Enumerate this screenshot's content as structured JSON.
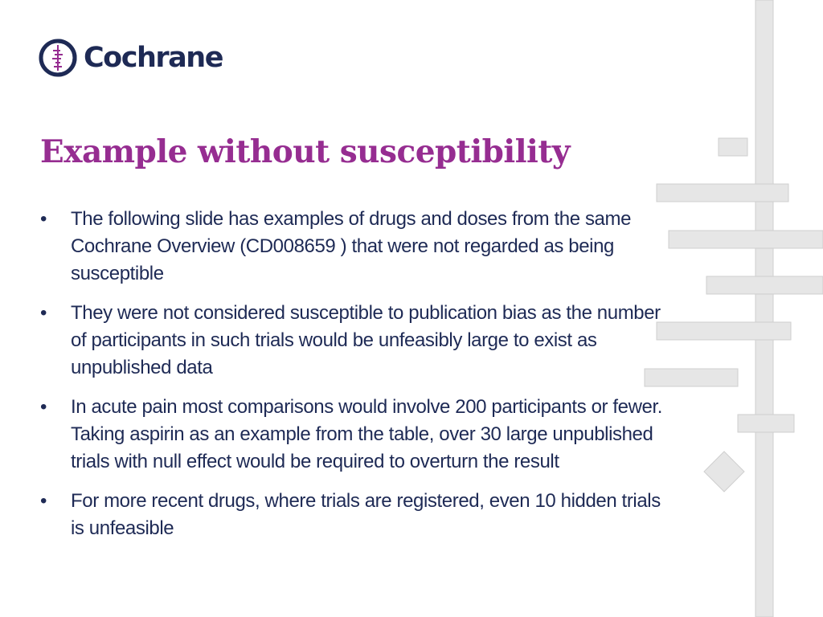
{
  "logo": {
    "icon": "cochrane-logo-icon",
    "text": "Cochrane"
  },
  "slide": {
    "title": "Example without susceptibility",
    "bullet_symbol": "•",
    "bullets": [
      "The following slide has examples of  drugs and doses  from the same Cochrane Overview (CD008659 ) that were not regarded as being susceptible",
      "They were not considered susceptible to publication bias as the number of participants in such trials would be unfeasibly large to exist as unpublished data",
      "In acute pain most comparisons would involve 200 participants or fewer. Taking aspirin as an example from the table, over 30 large unpublished trials with null effect would be required to overturn the result",
      "For more recent drugs, where trials are registered, even 10 hidden trials is unfeasible"
    ]
  },
  "colors": {
    "title": "#962d91",
    "text": "#1e2a55",
    "decoration": "#e6e6e6"
  }
}
